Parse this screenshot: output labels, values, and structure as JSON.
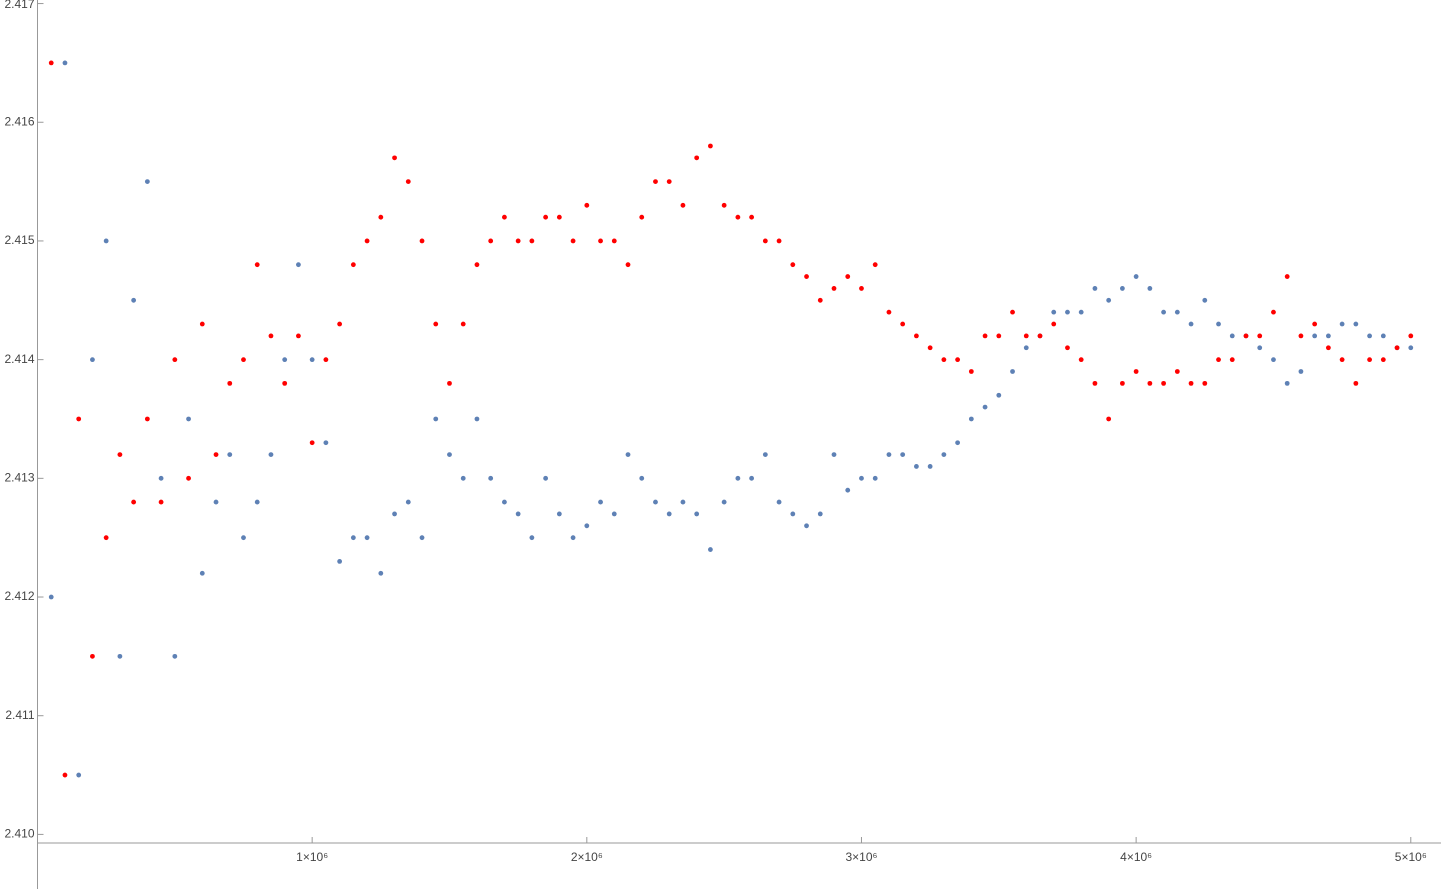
{
  "chart_data": {
    "type": "scatter",
    "x": [
      50000,
      100000,
      150000,
      200000,
      250000,
      300000,
      350000,
      400000,
      450000,
      500000,
      550000,
      600000,
      650000,
      700000,
      750000,
      800000,
      850000,
      900000,
      950000,
      1000000,
      1050000,
      1100000,
      1150000,
      1200000,
      1250000,
      1300000,
      1350000,
      1400000,
      1450000,
      1500000,
      1550000,
      1600000,
      1650000,
      1700000,
      1750000,
      1800000,
      1850000,
      1900000,
      1950000,
      2000000,
      2050000,
      2100000,
      2150000,
      2200000,
      2250000,
      2300000,
      2350000,
      2400000,
      2450000,
      2500000,
      2550000,
      2600000,
      2650000,
      2700000,
      2750000,
      2800000,
      2850000,
      2900000,
      2950000,
      3000000,
      3050000,
      3100000,
      3150000,
      3200000,
      3250000,
      3300000,
      3350000,
      3400000,
      3450000,
      3500000,
      3550000,
      3600000,
      3650000,
      3700000,
      3750000,
      3800000,
      3850000,
      3900000,
      3950000,
      4000000,
      4050000,
      4100000,
      4150000,
      4200000,
      4250000,
      4300000,
      4350000,
      4400000,
      4450000,
      4500000,
      4550000,
      4600000,
      4650000,
      4700000,
      4750000,
      4800000,
      4850000,
      4900000,
      4950000,
      5000000
    ],
    "series": [
      {
        "color": "#5e81b5",
        "values": [
          2.412,
          2.4165,
          2.4105,
          2.414,
          2.415,
          2.4115,
          2.4145,
          2.4155,
          2.413,
          2.4115,
          2.4135,
          2.4122,
          2.4128,
          2.4132,
          2.4125,
          2.4128,
          2.4132,
          2.414,
          2.4148,
          2.414,
          2.4133,
          2.4123,
          2.4125,
          2.4125,
          2.4122,
          2.4127,
          2.4128,
          2.4125,
          2.4135,
          2.4132,
          2.413,
          2.4135,
          2.413,
          2.4128,
          2.4127,
          2.4125,
          2.413,
          2.4127,
          2.4125,
          2.4126,
          2.4128,
          2.4127,
          2.4132,
          2.413,
          2.4128,
          2.4127,
          2.4128,
          2.4127,
          2.4124,
          2.4128,
          2.413,
          2.413,
          2.4132,
          2.4128,
          2.4127,
          2.4126,
          2.4127,
          2.4132,
          2.4129,
          2.413,
          2.413,
          2.4132,
          2.4132,
          2.4131,
          2.4131,
          2.4132,
          2.4133,
          2.4135,
          2.4136,
          2.4137,
          2.4139,
          2.4141,
          2.4142,
          2.4144,
          2.4144,
          2.4144,
          2.4146,
          2.4145,
          2.4146,
          2.4147,
          2.4146,
          2.4144,
          2.4144,
          2.4143,
          2.4145,
          2.4143,
          2.4142,
          2.4142,
          2.4141,
          2.414,
          2.4138,
          2.4139,
          2.4142,
          2.4142,
          2.4143,
          2.4143,
          2.4142,
          2.4142,
          2.4141,
          2.4141
        ]
      },
      {
        "color": "#ff0000",
        "values": [
          2.4165,
          2.4105,
          2.4135,
          2.4115,
          2.4125,
          2.4132,
          2.4128,
          2.4135,
          2.4128,
          2.414,
          2.413,
          2.4143,
          2.4132,
          2.4138,
          2.414,
          2.4148,
          2.4142,
          2.4138,
          2.4142,
          2.4133,
          2.414,
          2.4143,
          2.4148,
          2.415,
          2.4152,
          2.4157,
          2.4155,
          2.415,
          2.4143,
          2.4138,
          2.4143,
          2.4148,
          2.415,
          2.4152,
          2.415,
          2.415,
          2.4152,
          2.4152,
          2.415,
          2.4153,
          2.415,
          2.415,
          2.4148,
          2.4152,
          2.4155,
          2.4155,
          2.4153,
          2.4157,
          2.4158,
          2.4153,
          2.4152,
          2.4152,
          2.415,
          2.415,
          2.4148,
          2.4147,
          2.4145,
          2.4146,
          2.4147,
          2.4146,
          2.4148,
          2.4144,
          2.4143,
          2.4142,
          2.4141,
          2.414,
          2.414,
          2.4139,
          2.4142,
          2.4142,
          2.4144,
          2.4142,
          2.4142,
          2.4143,
          2.4141,
          2.414,
          2.4138,
          2.4135,
          2.4138,
          2.4139,
          2.4138,
          2.4138,
          2.4139,
          2.4138,
          2.4138,
          2.414,
          2.414,
          2.4142,
          2.4142,
          2.4144,
          2.4147,
          2.4142,
          2.4143,
          2.4141,
          2.414,
          2.4138,
          2.414,
          2.414,
          2.4141,
          2.4142
        ]
      }
    ],
    "xlim": [
      0,
      5110000
    ],
    "ylim": [
      2.40954,
      2.41703
    ],
    "xticks": [
      {
        "value": 1000000,
        "label": "1×10⁶"
      },
      {
        "value": 2000000,
        "label": "2×10⁶"
      },
      {
        "value": 3000000,
        "label": "3×10⁶"
      },
      {
        "value": 4000000,
        "label": "4×10⁶"
      },
      {
        "value": 5000000,
        "label": "5×10⁶"
      }
    ],
    "yticks": [
      {
        "value": 2.41,
        "label": "2.410"
      },
      2.411,
      2.412,
      2.413,
      2.414,
      2.415,
      2.416,
      2.417
    ],
    "grid": false
  }
}
